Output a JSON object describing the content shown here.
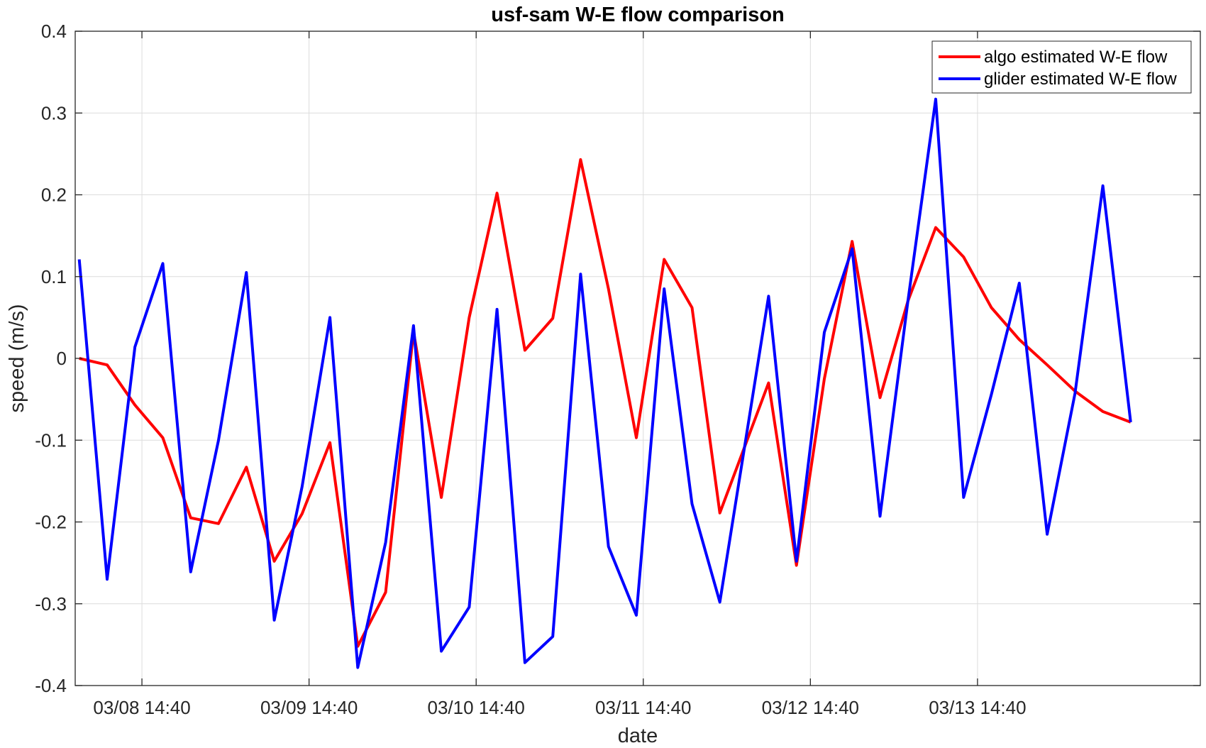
{
  "chart_data": {
    "type": "line",
    "title": "usf-sam W-E flow comparison",
    "xlabel": "date",
    "ylabel": "speed (m/s)",
    "ylim": [
      -0.4,
      0.4
    ],
    "yticks": [
      -0.4,
      -0.3,
      -0.2,
      -0.1,
      0,
      0.1,
      0.2,
      0.3,
      0.4
    ],
    "ytick_labels": [
      "-0.4",
      "-0.3",
      "-0.2",
      "-0.1",
      "0",
      "0.1",
      "0.2",
      "0.3",
      "0.4"
    ],
    "xlim": [
      "2024-03-08T05:05",
      "2024-03-14T22:40"
    ],
    "xticks": [
      "2024-03-08T14:40",
      "2024-03-09T14:40",
      "2024-03-10T14:40",
      "2024-03-11T14:40",
      "2024-03-12T14:40",
      "2024-03-13T14:40"
    ],
    "xtick_labels": [
      "03/08 14:40",
      "03/09 14:40",
      "03/10 14:40",
      "03/11 14:40",
      "03/12 14:40",
      "03/13 14:40"
    ],
    "grid": true,
    "legend_position": "top-right",
    "x": [
      "2024-03-08T05:40",
      "2024-03-08T09:40",
      "2024-03-08T13:40",
      "2024-03-08T17:40",
      "2024-03-08T21:40",
      "2024-03-09T01:40",
      "2024-03-09T05:40",
      "2024-03-09T09:40",
      "2024-03-09T13:40",
      "2024-03-09T17:40",
      "2024-03-09T21:40",
      "2024-03-10T01:40",
      "2024-03-10T05:40",
      "2024-03-10T09:40",
      "2024-03-10T13:40",
      "2024-03-10T17:40",
      "2024-03-10T21:40",
      "2024-03-11T01:40",
      "2024-03-11T05:40",
      "2024-03-11T09:40",
      "2024-03-11T13:40",
      "2024-03-11T17:40",
      "2024-03-11T21:40",
      "2024-03-12T01:40",
      "2024-03-12T08:40",
      "2024-03-12T12:40",
      "2024-03-12T16:40",
      "2024-03-12T20:40",
      "2024-03-13T00:40",
      "2024-03-13T04:40",
      "2024-03-13T08:40",
      "2024-03-13T12:40",
      "2024-03-13T16:40",
      "2024-03-13T20:40",
      "2024-03-14T00:40",
      "2024-03-14T04:40",
      "2024-03-14T08:40",
      "2024-03-14T12:40",
      "2024-03-14T16:40",
      "2024-03-14T20:40"
    ],
    "series": [
      {
        "name": "algo estimated W-E flow",
        "color": "#ff0000",
        "values": [
          0.0,
          -0.008,
          -0.057,
          -0.097,
          -0.195,
          -0.202,
          -0.133,
          -0.248,
          -0.19,
          -0.103,
          -0.352,
          -0.286,
          0.033,
          -0.17,
          0.05,
          0.202,
          0.01,
          0.049,
          0.243,
          0.085,
          -0.097,
          0.121,
          0.062,
          -0.189,
          -0.03,
          -0.253,
          -0.025,
          0.143,
          -0.048,
          0.07,
          0.16,
          0.124,
          0.062,
          0.023,
          -0.008,
          -0.04,
          -0.065,
          -0.078,
          null,
          null
        ]
      },
      {
        "name": "glider estimated W-E flow",
        "color": "#0000ff",
        "values": [
          0.121,
          -0.27,
          0.014,
          0.116,
          -0.261,
          -0.1,
          0.105,
          -0.32,
          -0.157,
          0.05,
          -0.378,
          -0.225,
          0.04,
          -0.358,
          -0.304,
          0.06,
          -0.372,
          -0.34,
          0.103,
          -0.23,
          -0.314,
          0.085,
          -0.178,
          -0.298,
          0.076,
          -0.248,
          0.032,
          0.134,
          -0.193,
          0.07,
          0.317,
          -0.17,
          -0.044,
          0.092,
          -0.215,
          -0.043,
          0.211,
          -0.078,
          null,
          null
        ]
      }
    ]
  }
}
